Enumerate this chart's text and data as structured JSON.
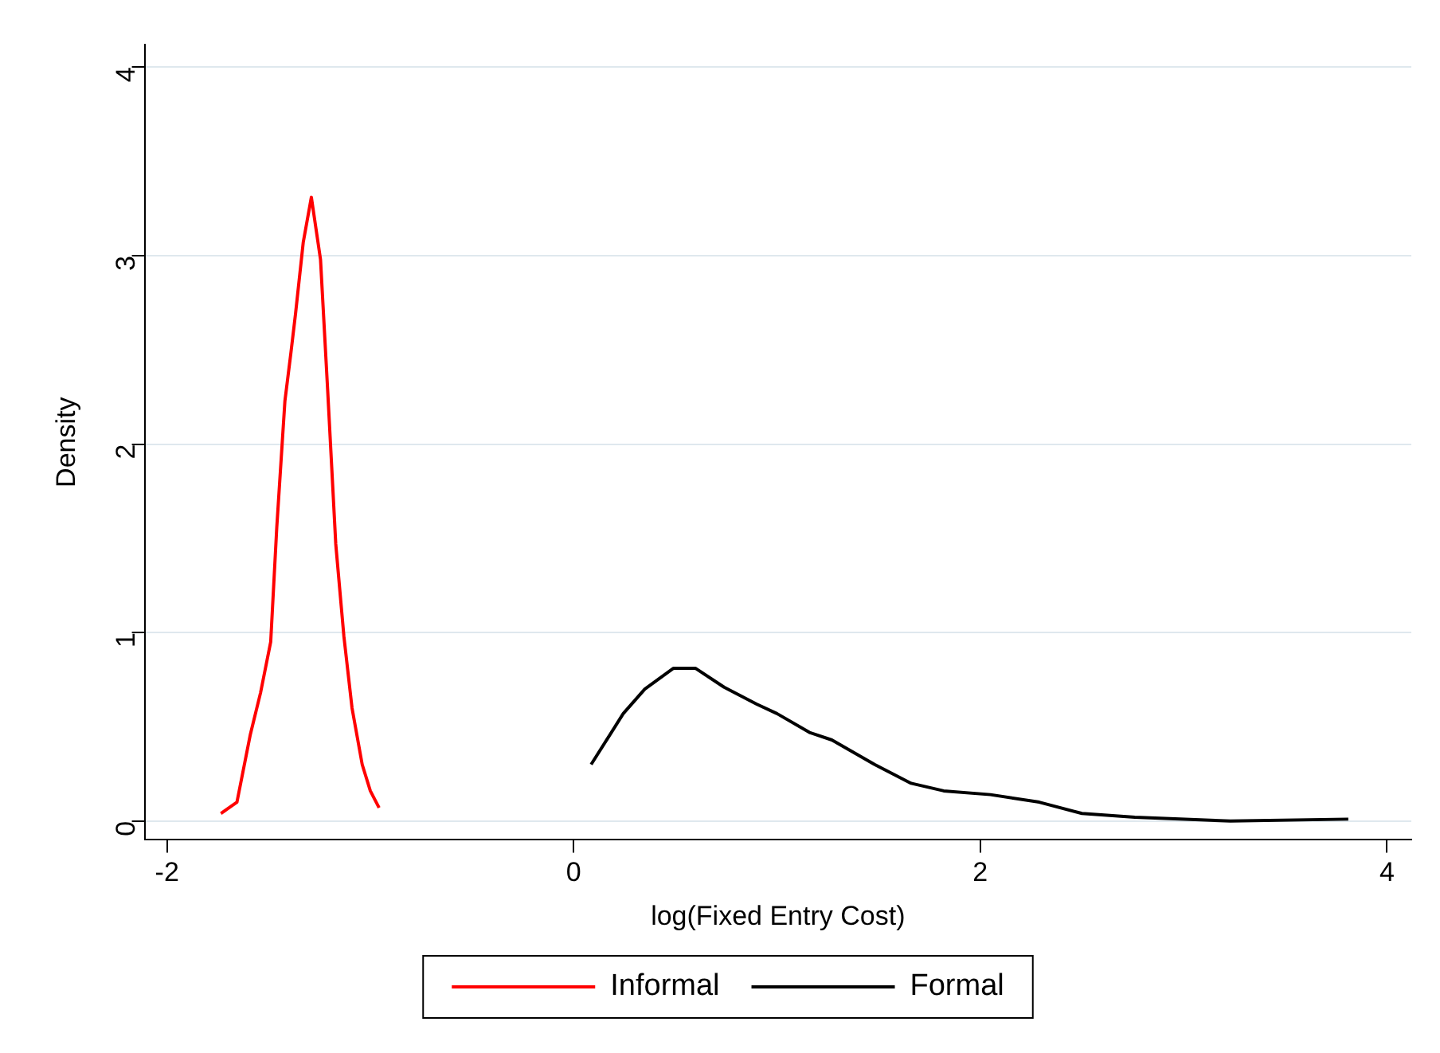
{
  "chart_data": {
    "type": "line",
    "xlabel": "log(Fixed Entry Cost)",
    "ylabel": "Density",
    "xlim": [
      -2.11,
      4.12
    ],
    "xticks": [
      -2,
      0,
      2,
      4
    ],
    "ylim": [
      -0.1,
      4.12
    ],
    "yticks": [
      0,
      1,
      2,
      3,
      4
    ],
    "grid": "y",
    "legend": "bottom",
    "marker": "none",
    "line_style": "solid",
    "series": [
      {
        "name": "Informal",
        "color": "#ff0000",
        "x": [
          -1.735,
          -1.656,
          -1.59,
          -1.54,
          -1.49,
          -1.46,
          -1.42,
          -1.39,
          -1.368,
          -1.33,
          -1.29,
          -1.245,
          -1.21,
          -1.17,
          -1.13,
          -1.09,
          -1.04,
          -1.0,
          -0.957
        ],
        "values": [
          0.04,
          0.1,
          0.46,
          0.68,
          0.95,
          1.56,
          2.23,
          2.49,
          2.69,
          3.07,
          3.31,
          2.98,
          2.29,
          1.47,
          0.98,
          0.6,
          0.3,
          0.16,
          0.07
        ]
      },
      {
        "name": "Formal",
        "color": "#000000",
        "x": [
          0.086,
          0.244,
          0.35,
          0.49,
          0.6,
          0.74,
          0.9,
          1.0,
          1.16,
          1.27,
          1.48,
          1.66,
          1.82,
          2.05,
          2.29,
          2.5,
          2.76,
          3.23,
          3.81
        ],
        "values": [
          0.3,
          0.57,
          0.7,
          0.81,
          0.81,
          0.71,
          0.62,
          0.57,
          0.47,
          0.43,
          0.3,
          0.2,
          0.16,
          0.14,
          0.1,
          0.04,
          0.02,
          0.0,
          0.01
        ]
      }
    ]
  }
}
